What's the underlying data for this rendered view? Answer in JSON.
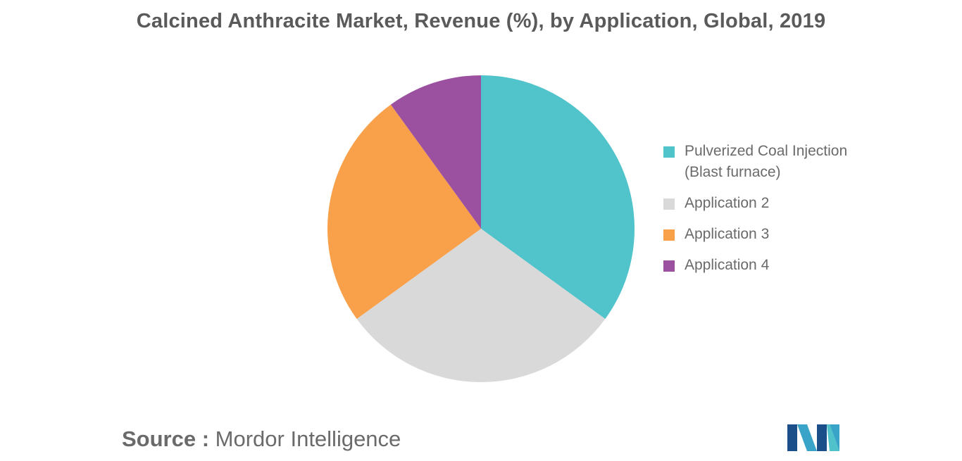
{
  "chart_data": {
    "type": "pie",
    "title": "Calcined Anthracite Market, Revenue (%), by Application, Global, 2019",
    "categories": [
      "Pulverized Coal Injection (Blast furnace)",
      "Application 2",
      "Application 3",
      "Application 4"
    ],
    "values": [
      35,
      30,
      25,
      10
    ],
    "colors": [
      "#50c4ca",
      "#d9d9d9",
      "#f9a04b",
      "#9c51a0"
    ],
    "legend_position": "right"
  },
  "source": {
    "prefix": "Source :",
    "name": "Mordor Intelligence"
  },
  "logo": {
    "icon": "mordor-intelligence-logo-icon",
    "colors": [
      "#1b4f8a",
      "#3aa3c8",
      "#4fc3c9"
    ]
  }
}
